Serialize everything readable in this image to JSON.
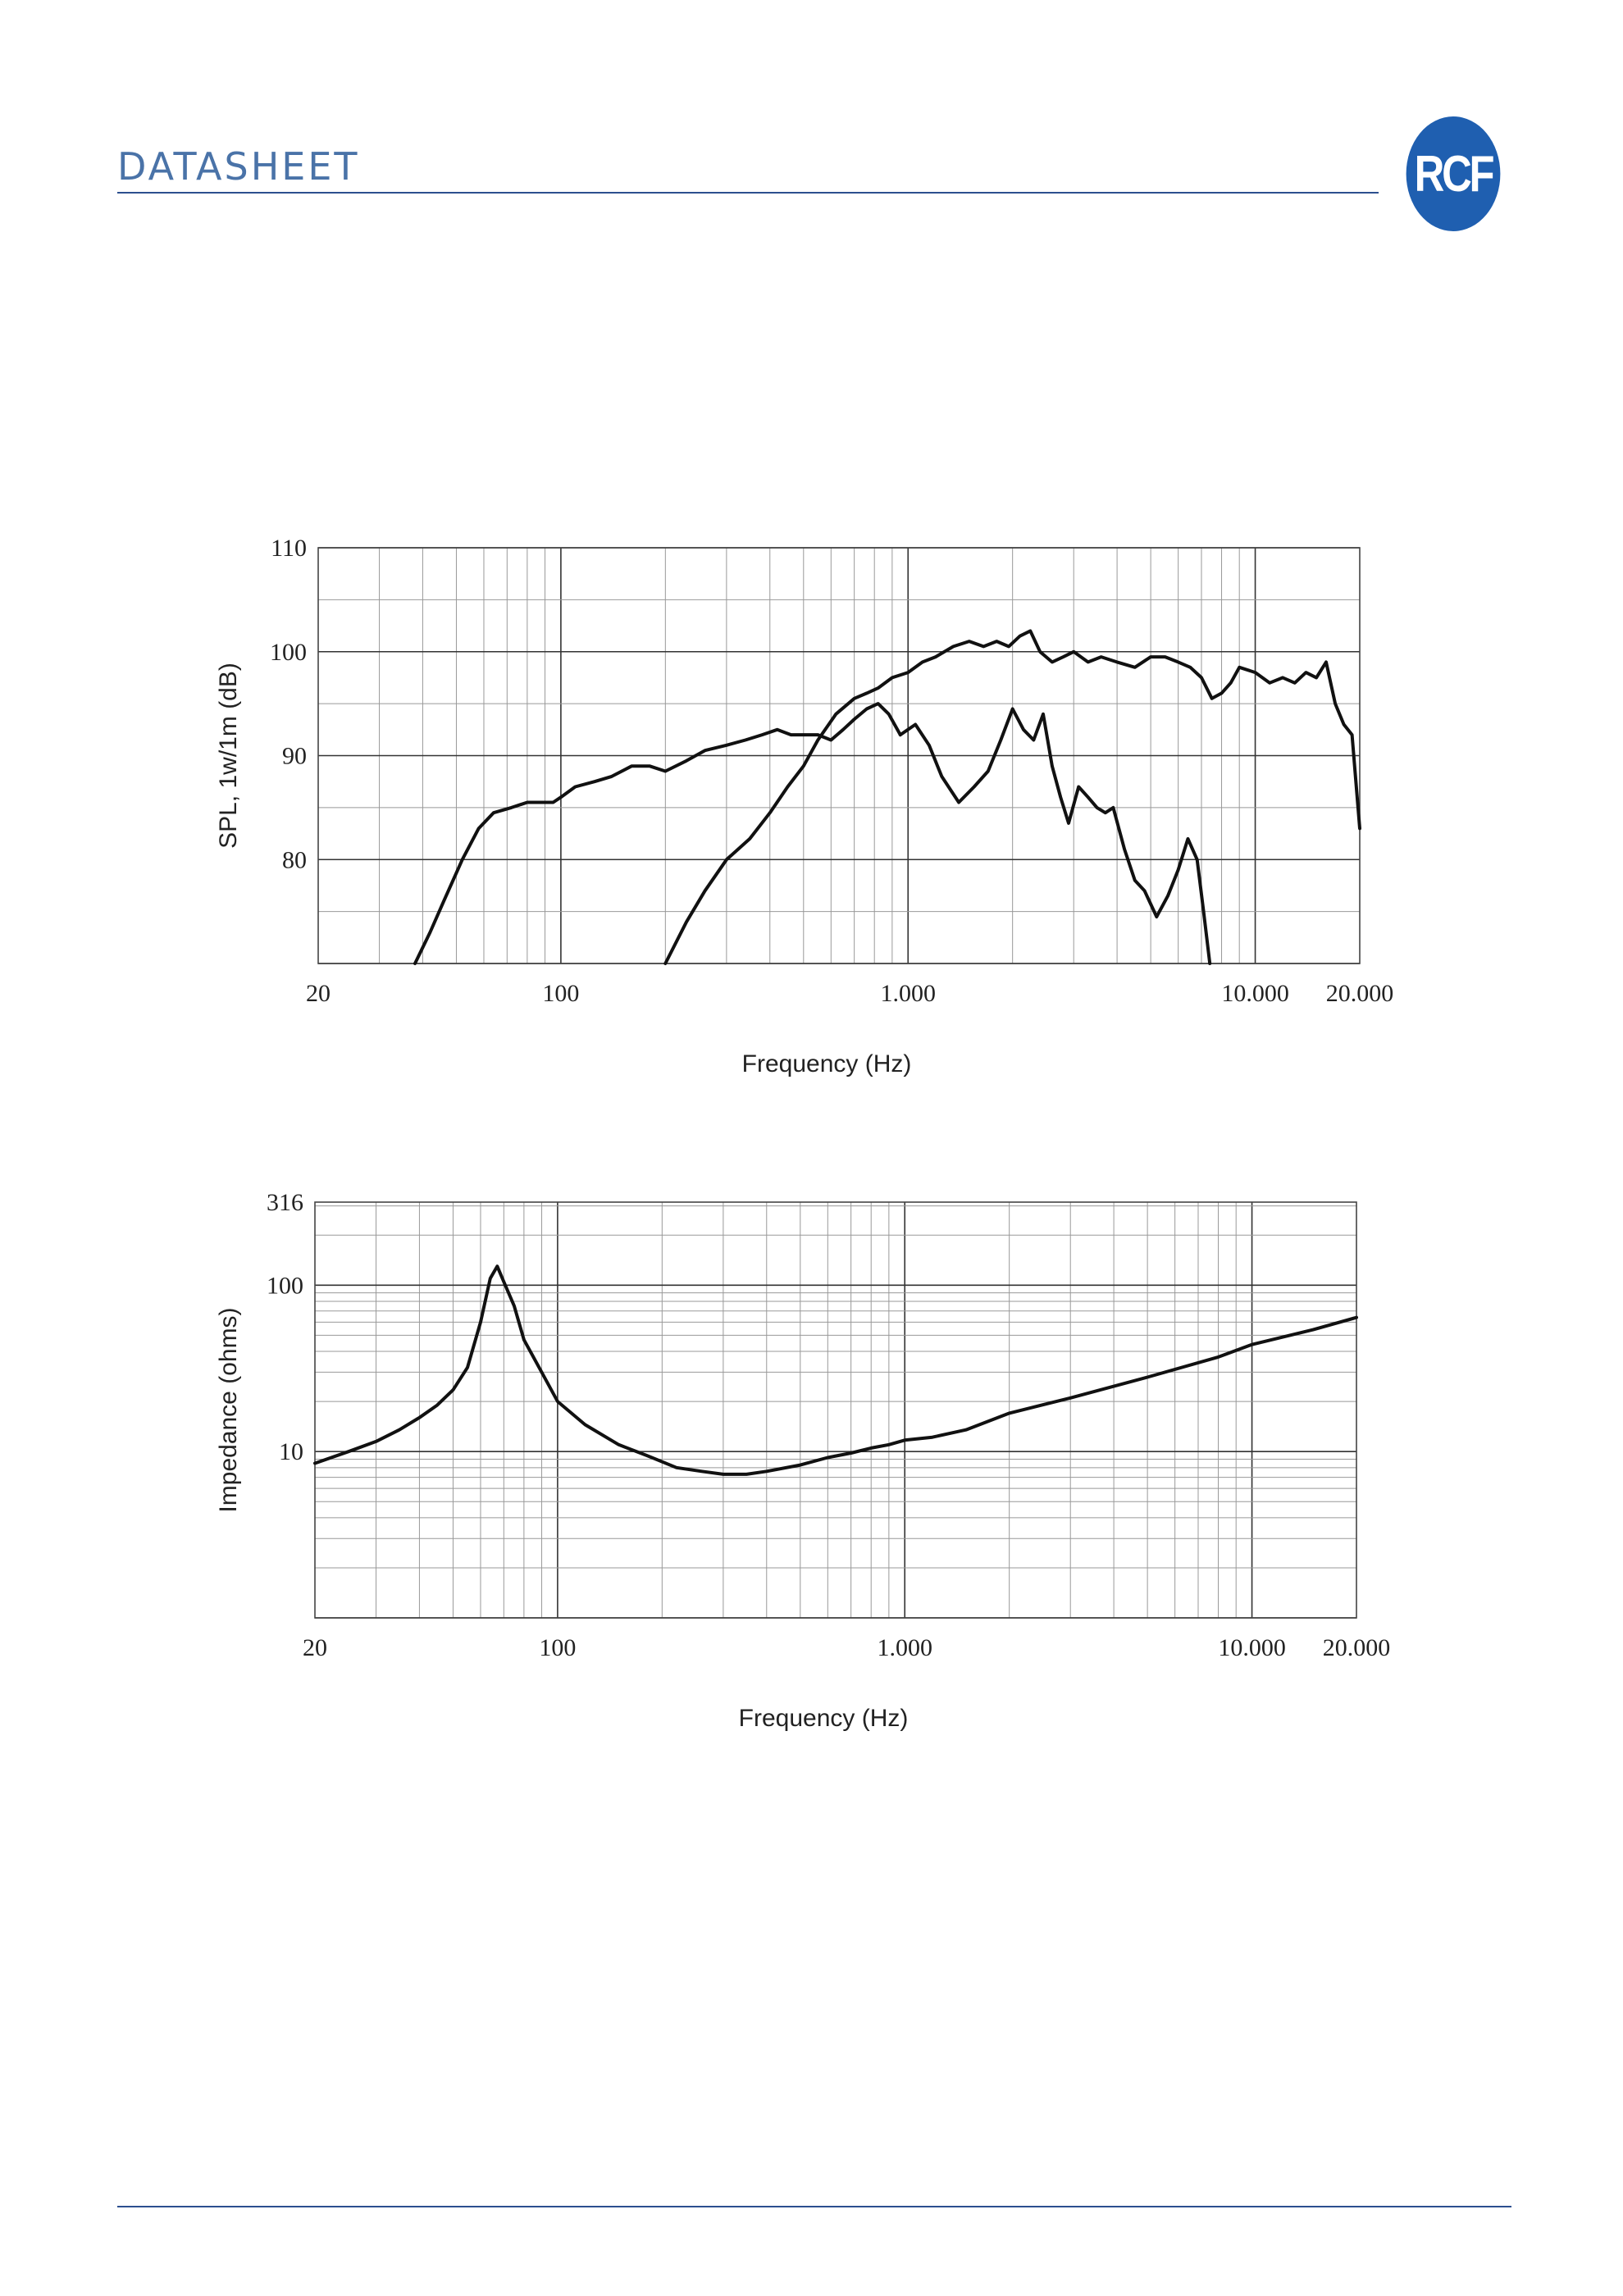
{
  "header": {
    "title": "DATASHEET",
    "logo_text": "RCF"
  },
  "chart_data": [
    {
      "type": "line",
      "xscale": "log",
      "xlim": [
        20,
        20000
      ],
      "ylim": [
        70,
        110
      ],
      "xlabel": "Frequency (Hz)",
      "ylabel": "SPL, 1w/1m (dB)",
      "xticks": [
        {
          "value": 20,
          "label": "20"
        },
        {
          "value": 100,
          "label": "100"
        },
        {
          "value": 1000,
          "label": "1.000"
        },
        {
          "value": 10000,
          "label": "10.000"
        },
        {
          "value": 20000,
          "label": "20.000"
        }
      ],
      "yticks": [
        {
          "value": 80,
          "label": "80"
        },
        {
          "value": 90,
          "label": "90"
        },
        {
          "value": 100,
          "label": "100"
        },
        {
          "value": 110,
          "label": "110"
        }
      ],
      "grid": true,
      "series": [
        {
          "x": [
            38,
            42,
            46,
            52,
            58,
            64,
            72,
            80,
            88,
            95,
            100,
            110,
            125,
            140,
            160,
            180,
            200,
            230,
            260,
            300,
            340,
            380,
            420,
            460,
            500,
            550,
            600,
            650,
            700,
            760,
            820,
            880,
            950
          ],
          "y": [
            70,
            73,
            76,
            80,
            83,
            84.5,
            85,
            85.5,
            85.5,
            85.5,
            86,
            87,
            87.5,
            88,
            89,
            89,
            88.5,
            89.5,
            90.5,
            91,
            91.5,
            92,
            92.5,
            92,
            92,
            92,
            91.5,
            92.5,
            93.5,
            94.5,
            95,
            94,
            92
          ]
        },
        {
          "x": [
            200,
            230,
            260,
            300,
            350,
            400,
            450,
            500,
            550,
            620,
            700,
            760,
            820,
            900,
            1000,
            1100,
            1200,
            1350,
            1500,
            1650,
            1800,
            1950,
            2100,
            2250,
            2400,
            2600,
            2800,
            3000,
            3300,
            3600,
            4000,
            4500,
            5000,
            5500,
            6000,
            6500,
            7000,
            7500,
            8000,
            8500,
            9000,
            10000,
            11000,
            12000,
            13000,
            14000,
            15000,
            16000,
            17000,
            18000,
            19000,
            20000
          ],
          "y": [
            70,
            74,
            77,
            80,
            82,
            84.5,
            87,
            89,
            91.5,
            94,
            95.5,
            96,
            96.5,
            97.5,
            98,
            99,
            99.5,
            100.5,
            101,
            100.5,
            101,
            100.5,
            101.5,
            102,
            100,
            99,
            99.5,
            100,
            99,
            99.5,
            99,
            98.5,
            99.5,
            99.5,
            99,
            98.5,
            97.5,
            95.5,
            96,
            97,
            98.5,
            98,
            97,
            97.5,
            97,
            98,
            97.5,
            99,
            95,
            93,
            92,
            83
          ]
        },
        {
          "x": [
            950,
            1050,
            1150,
            1250,
            1400,
            1550,
            1700,
            1850,
            2000,
            2150,
            2300,
            2450,
            2600,
            2750,
            2900,
            3100,
            3300,
            3500,
            3700,
            3900,
            4200,
            4500,
            4800,
            5200,
            5600,
            6000,
            6400,
            6800,
            7100,
            7400
          ],
          "y": [
            92,
            93,
            91,
            88,
            85.5,
            87,
            88.5,
            91.5,
            94.5,
            92.5,
            91.5,
            94,
            89,
            86,
            83.5,
            87,
            86,
            85,
            84.5,
            85,
            81,
            78,
            77,
            74.5,
            76.5,
            79,
            82,
            80,
            75,
            70
          ]
        }
      ]
    },
    {
      "type": "line",
      "xscale": "log",
      "yscale": "log",
      "xlim": [
        20,
        20000
      ],
      "ylim": [
        1,
        316
      ],
      "xlabel": "Frequency (Hz)",
      "ylabel": "Impedance (ohms)",
      "xticks": [
        {
          "value": 20,
          "label": "20"
        },
        {
          "value": 100,
          "label": "100"
        },
        {
          "value": 1000,
          "label": "1.000"
        },
        {
          "value": 10000,
          "label": "10.000"
        },
        {
          "value": 20000,
          "label": "20.000"
        }
      ],
      "yticks": [
        {
          "value": 10,
          "label": "10"
        },
        {
          "value": 100,
          "label": "100"
        },
        {
          "value": 316,
          "label": "316"
        }
      ],
      "grid": true,
      "series": [
        {
          "x": [
            20,
            25,
            30,
            35,
            40,
            45,
            50,
            55,
            60,
            64,
            67,
            70,
            75,
            80,
            90,
            100,
            120,
            150,
            180,
            220,
            260,
            300,
            350,
            400,
            500,
            600,
            700,
            800,
            900,
            1000,
            1200,
            1500,
            2000,
            3000,
            5000,
            8000,
            10000,
            15000,
            20000
          ],
          "y": [
            8.5,
            10,
            11.5,
            13.5,
            16,
            19,
            23.5,
            32,
            60,
            110,
            130,
            105,
            75,
            47,
            30,
            20,
            14.5,
            11,
            9.5,
            8,
            7.6,
            7.3,
            7.3,
            7.6,
            8.3,
            9.2,
            9.8,
            10.5,
            11,
            11.7,
            12.2,
            13.5,
            17,
            21,
            28,
            37,
            44,
            54,
            64
          ]
        }
      ]
    }
  ]
}
